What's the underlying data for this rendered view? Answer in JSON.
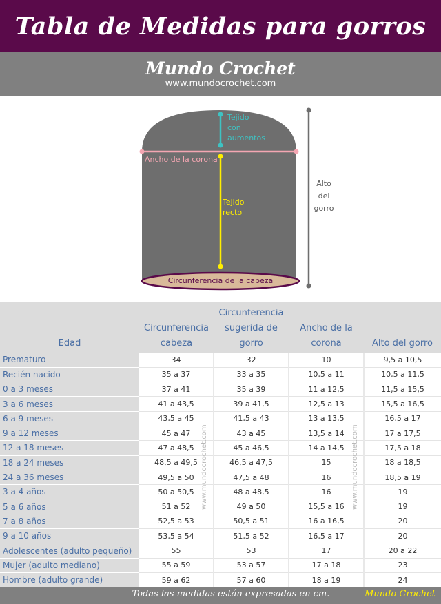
{
  "header": {
    "title": "Tabla de Medidas para gorros",
    "brand": "Mundo Crochet",
    "url": "www.mundocrochet.com"
  },
  "diagram": {
    "label_increase": [
      "Tejido",
      "con",
      "aumentos"
    ],
    "label_crown": "Ancho de la corona",
    "label_straight": [
      "Tejido",
      "recto"
    ],
    "label_height": [
      "Alto",
      "del",
      "gorro"
    ],
    "label_circumference": "Circunferencia de la cabeza",
    "colors": {
      "hat": "#6e6e6e",
      "teal": "#3ec3c3",
      "pink": "#f4a6b2",
      "yellow": "#ffee00",
      "purple": "#5a0a4a",
      "band": "#d9b99a"
    }
  },
  "table": {
    "headers": [
      "Edad",
      "Circunferencia cabeza",
      "Circunferencia sugerida de gorro",
      "Ancho de la corona",
      "Alto del gorro"
    ],
    "rows": [
      [
        "Prematuro",
        "34",
        "32",
        "10",
        "9,5 a 10,5"
      ],
      [
        "Recién nacido",
        "35 a 37",
        "33 a 35",
        "10,5 a 11",
        "10,5 a 11,5"
      ],
      [
        "0 a 3 meses",
        "37 a 41",
        "35 a 39",
        "11 a 12,5",
        "11,5 a 15,5"
      ],
      [
        "3 a 6 meses",
        "41 a 43,5",
        "39 a 41,5",
        "12,5 a 13",
        "15,5 a 16,5"
      ],
      [
        "6 a 9 meses",
        "43,5 a 45",
        "41,5 a 43",
        "13 a 13,5",
        "16,5 a 17"
      ],
      [
        "9 a 12 meses",
        "45 a 47",
        "43 a 45",
        "13,5 a 14",
        "17 a 17,5"
      ],
      [
        "12 a 18 meses",
        "47 a 48,5",
        "45 a 46,5",
        "14 a 14,5",
        "17,5 a 18"
      ],
      [
        "18 a 24 meses",
        "48,5 a 49,5",
        "46,5 a 47,5",
        "15",
        "18 a 18,5"
      ],
      [
        "24 a 36 meses",
        "49,5 a 50",
        "47,5 a 48",
        "16",
        "18,5 a 19"
      ],
      [
        "3 a 4 años",
        "50 a 50,5",
        "48 a 48,5",
        "16",
        "19"
      ],
      [
        "5 a 6 años",
        "51 a 52",
        "49 a 50",
        "15,5 a 16",
        "19"
      ],
      [
        "7 a 8 años",
        "52,5 a 53",
        "50,5 a 51",
        "16 a 16,5",
        "20"
      ],
      [
        "9 a 10 años",
        "53,5 a 54",
        "51,5 a 52",
        "16,5 a 17",
        "20"
      ],
      [
        "Adolescentes (adulto pequeño)",
        "55",
        "53",
        "17",
        "20 a 22"
      ],
      [
        "Mujer (adulto mediano)",
        "55 a 59",
        "53 a 57",
        "17 a 18",
        "23"
      ],
      [
        "Hombre (adulto grande)",
        "59 a 62",
        "57 a 60",
        "18 a 19",
        "24"
      ]
    ]
  },
  "watermark": "www.mundocrochet.com",
  "footer": {
    "note": "Todas las medidas están expresadas en cm.",
    "brand": "Mundo Crochet"
  }
}
